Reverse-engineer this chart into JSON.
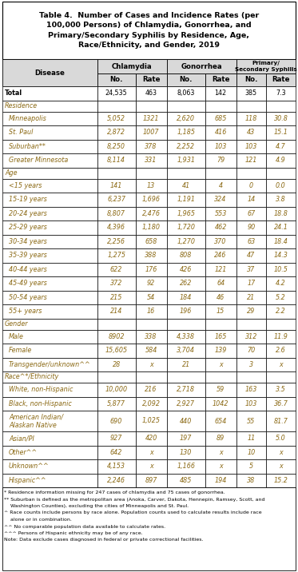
{
  "title": "Table 4.  Number of Cases and Incidence Rates (per\n100,000 Persons) of Chlamydia, Gonorrhea, and\nPrimary/Secondary Syphilis by Residence, Age,\nRace/Ethnicity, and Gender, 2019",
  "rows": [
    {
      "label": "Total",
      "indent": false,
      "category": false,
      "total": true,
      "values": [
        "24,535",
        "463",
        "8,063",
        "142",
        "385",
        "7.3"
      ]
    },
    {
      "label": "Residence",
      "indent": false,
      "category": true,
      "total": false,
      "values": [
        "",
        "",
        "",
        "",
        "",
        ""
      ]
    },
    {
      "label": "Minneapolis",
      "indent": true,
      "category": false,
      "total": false,
      "values": [
        "5,052",
        "1321",
        "2,620",
        "685",
        "118",
        "30.8"
      ]
    },
    {
      "label": "St. Paul",
      "indent": true,
      "category": false,
      "total": false,
      "values": [
        "2,872",
        "1007",
        "1,185",
        "416",
        "43",
        "15.1"
      ]
    },
    {
      "label": "Suburban**",
      "indent": true,
      "category": false,
      "total": false,
      "values": [
        "8,250",
        "378",
        "2,252",
        "103",
        "103",
        "4.7"
      ]
    },
    {
      "label": "Greater Minnesota",
      "indent": true,
      "category": false,
      "total": false,
      "values": [
        "8,114",
        "331",
        "1,931",
        "79",
        "121",
        "4.9"
      ]
    },
    {
      "label": "Age",
      "indent": false,
      "category": true,
      "total": false,
      "values": [
        "",
        "",
        "",
        "",
        "",
        ""
      ]
    },
    {
      "label": "<15 years",
      "indent": true,
      "category": false,
      "total": false,
      "values": [
        "141",
        "13",
        "41",
        "4",
        "0",
        "0.0"
      ]
    },
    {
      "label": "15-19 years",
      "indent": true,
      "category": false,
      "total": false,
      "values": [
        "6,237",
        "1,696",
        "1,191",
        "324",
        "14",
        "3.8"
      ]
    },
    {
      "label": "20-24 years",
      "indent": true,
      "category": false,
      "total": false,
      "values": [
        "8,807",
        "2,476",
        "1,965",
        "553",
        "67",
        "18.8"
      ]
    },
    {
      "label": "25-29 years",
      "indent": true,
      "category": false,
      "total": false,
      "values": [
        "4,396",
        "1,180",
        "1,720",
        "462",
        "90",
        "24.1"
      ]
    },
    {
      "label": "30-34 years",
      "indent": true,
      "category": false,
      "total": false,
      "values": [
        "2,256",
        "658",
        "1,270",
        "370",
        "63",
        "18.4"
      ]
    },
    {
      "label": "35-39 years",
      "indent": true,
      "category": false,
      "total": false,
      "values": [
        "1,275",
        "388",
        "808",
        "246",
        "47",
        "14.3"
      ]
    },
    {
      "label": "40-44 years",
      "indent": true,
      "category": false,
      "total": false,
      "values": [
        "622",
        "176",
        "426",
        "121",
        "37",
        "10.5"
      ]
    },
    {
      "label": "45-49 years",
      "indent": true,
      "category": false,
      "total": false,
      "values": [
        "372",
        "92",
        "262",
        "64",
        "17",
        "4.2"
      ]
    },
    {
      "label": "50-54 years",
      "indent": true,
      "category": false,
      "total": false,
      "values": [
        "215",
        "54",
        "184",
        "46",
        "21",
        "5.2"
      ]
    },
    {
      "label": "55+ years",
      "indent": true,
      "category": false,
      "total": false,
      "values": [
        "214",
        "16",
        "196",
        "15",
        "29",
        "2.2"
      ]
    },
    {
      "label": "Gender",
      "indent": false,
      "category": true,
      "total": false,
      "values": [
        "",
        "",
        "",
        "",
        "",
        ""
      ]
    },
    {
      "label": "Male",
      "indent": true,
      "category": false,
      "total": false,
      "values": [
        "8902",
        "338",
        "4,338",
        "165",
        "312",
        "11.9"
      ]
    },
    {
      "label": "Female",
      "indent": true,
      "category": false,
      "total": false,
      "values": [
        "15,605",
        "584",
        "3,704",
        "139",
        "70",
        "2.6"
      ]
    },
    {
      "label": "Transgender/unknown^^",
      "indent": true,
      "category": false,
      "total": false,
      "values": [
        "28",
        "x",
        "21",
        "x",
        "3",
        "x"
      ]
    },
    {
      "label": "Race^*/Ethnicity",
      "indent": false,
      "category": true,
      "total": false,
      "values": [
        "",
        "",
        "",
        "",
        "",
        ""
      ]
    },
    {
      "label": "White, non-Hispanic",
      "indent": true,
      "category": false,
      "total": false,
      "values": [
        "10,000",
        "216",
        "2,718",
        "59",
        "163",
        "3.5"
      ]
    },
    {
      "label": "Black, non-Hispanic",
      "indent": true,
      "category": false,
      "total": false,
      "values": [
        "5,877",
        "2,092",
        "2,927",
        "1042",
        "103",
        "36.7"
      ]
    },
    {
      "label": "American Indian/\nAlaskan Native",
      "indent": true,
      "category": false,
      "total": false,
      "multiline": true,
      "values": [
        "690",
        "1,025",
        "440",
        "654",
        "55",
        "81.7"
      ]
    },
    {
      "label": "Asian/PI",
      "indent": true,
      "category": false,
      "total": false,
      "values": [
        "927",
        "420",
        "197",
        "89",
        "11",
        "5.0"
      ]
    },
    {
      "label": "Other^^",
      "indent": true,
      "category": false,
      "total": false,
      "values": [
        "642",
        "x",
        "130",
        "x",
        "10",
        "x"
      ]
    },
    {
      "label": "Unknown^^",
      "indent": true,
      "category": false,
      "total": false,
      "values": [
        "4,153",
        "x",
        "1,166",
        "x",
        "5",
        "x"
      ]
    },
    {
      "label": "Hispanic^^",
      "indent": true,
      "category": false,
      "total": false,
      "values": [
        "2,246",
        "897",
        "485",
        "194",
        "38",
        "15.2"
      ]
    }
  ],
  "footnote_lines": [
    "* Residence information missing for 247 cases of chlamydia and 75 cases of gonorrhea.",
    "** Suburban is defined as the metropolitan area (Anoka, Carver, Dakota, Hennepin, Ramsey, Scott, and",
    "    Washington Counties), excluding the cities of Minneapolis and St. Paul.",
    "^ Race counts include persons by race alone. Population counts used to calculate results include race",
    "    alone or in combination.",
    "^^ No comparable population data available to calculate rates.",
    "^^^ Persons of Hispanic ethnicity may be of any race.",
    "Note: Data exclude cases diagnosed in federal or private correctional facilities."
  ],
  "header_bg": "#d9d9d9",
  "border_color": "#000000",
  "italic_color": "#8B6914",
  "title_fontsize": 6.8,
  "header_fontsize": 6.2,
  "data_fontsize": 5.8,
  "footnote_fontsize": 4.5
}
